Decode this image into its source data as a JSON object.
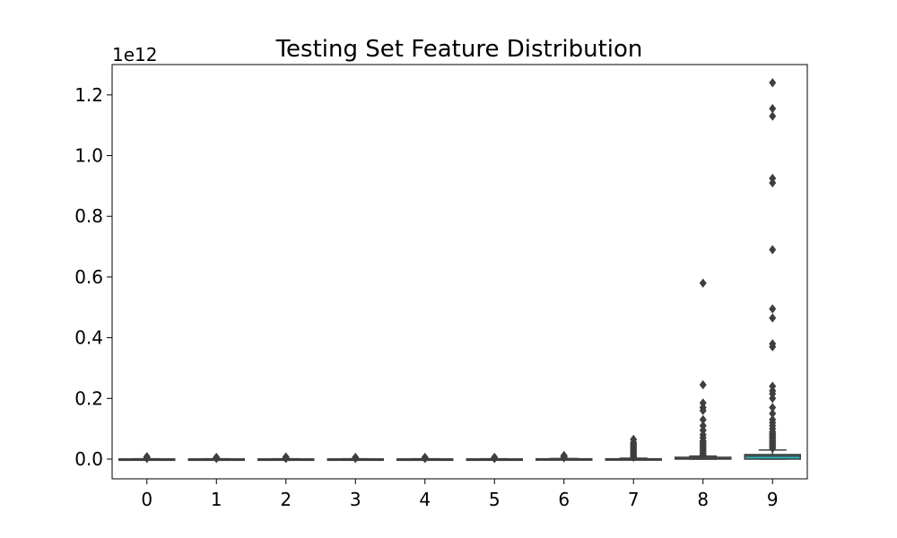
{
  "chart_data": {
    "type": "box",
    "title": "Testing Set Feature Distribution",
    "y_offset_label": "1e12",
    "categories": [
      "0",
      "1",
      "2",
      "3",
      "4",
      "5",
      "6",
      "7",
      "8",
      "9"
    ],
    "y_ticks": [
      0.0,
      0.2,
      0.4,
      0.6,
      0.8,
      1.0,
      1.2
    ],
    "y_tick_labels": [
      "0.0",
      "0.2",
      "0.4",
      "0.6",
      "0.8",
      "1.0",
      "1.2"
    ],
    "ylim": [
      -0.065,
      1.3
    ],
    "grid": false,
    "legend": "none",
    "colors": [
      "#3a75af",
      "#e1812c",
      "#3a923a",
      "#c03d3e",
      "#9372b2",
      "#845b53",
      "#d684bd",
      "#7f7f7f",
      "#a9aa35",
      "#2eb1c0"
    ],
    "series": [
      {
        "q1": 0,
        "median": 0,
        "q3": 0.0005,
        "whisker_low": 0,
        "whisker_high": 0.001,
        "outliers": [
          0.002,
          0.004,
          0.006,
          0.008
        ]
      },
      {
        "q1": 0,
        "median": 0,
        "q3": 0.0005,
        "whisker_low": 0,
        "whisker_high": 0.001,
        "outliers": [
          0.002,
          0.004,
          0.006
        ]
      },
      {
        "q1": 0,
        "median": 0,
        "q3": 0.0005,
        "whisker_low": 0,
        "whisker_high": 0.001,
        "outliers": [
          0.002,
          0.003,
          0.005,
          0.007
        ]
      },
      {
        "q1": 0,
        "median": 0,
        "q3": 0.0005,
        "whisker_low": 0,
        "whisker_high": 0.001,
        "outliers": [
          0.002,
          0.004,
          0.006
        ]
      },
      {
        "q1": 0,
        "median": 0,
        "q3": 0.0005,
        "whisker_low": 0,
        "whisker_high": 0.001,
        "outliers": [
          0.002,
          0.004,
          0.006
        ]
      },
      {
        "q1": 0,
        "median": 0,
        "q3": 0.0005,
        "whisker_low": 0,
        "whisker_high": 0.001,
        "outliers": [
          0.002,
          0.004,
          0.006
        ]
      },
      {
        "q1": 0,
        "median": 0,
        "q3": 0.001,
        "whisker_low": 0,
        "whisker_high": 0.002,
        "outliers": [
          0.004,
          0.006,
          0.008,
          0.01,
          0.012
        ]
      },
      {
        "q1": 0,
        "median": 0.0005,
        "q3": 0.001,
        "whisker_low": 0,
        "whisker_high": 0.003,
        "outliers": [
          0.006,
          0.01,
          0.015,
          0.02,
          0.025,
          0.03,
          0.035,
          0.04,
          0.045,
          0.05,
          0.055,
          0.065
        ]
      },
      {
        "q1": 0,
        "median": 0.002,
        "q3": 0.006,
        "whisker_low": 0,
        "whisker_high": 0.01,
        "outliers": [
          0.012,
          0.015,
          0.02,
          0.025,
          0.03,
          0.035,
          0.04,
          0.045,
          0.05,
          0.055,
          0.06,
          0.07,
          0.08,
          0.095,
          0.11,
          0.13,
          0.16,
          0.17,
          0.185,
          0.245,
          0.58
        ]
      },
      {
        "q1": 0,
        "median": 0.01,
        "q3": 0.015,
        "whisker_low": 0,
        "whisker_high": 0.03,
        "outliers": [
          0.035,
          0.04,
          0.045,
          0.05,
          0.055,
          0.06,
          0.065,
          0.07,
          0.075,
          0.08,
          0.085,
          0.09,
          0.1,
          0.11,
          0.12,
          0.13,
          0.15,
          0.17,
          0.2,
          0.215,
          0.225,
          0.24,
          0.37,
          0.38,
          0.465,
          0.495,
          0.69,
          0.91,
          0.925,
          1.13,
          1.155,
          1.24
        ]
      }
    ]
  }
}
